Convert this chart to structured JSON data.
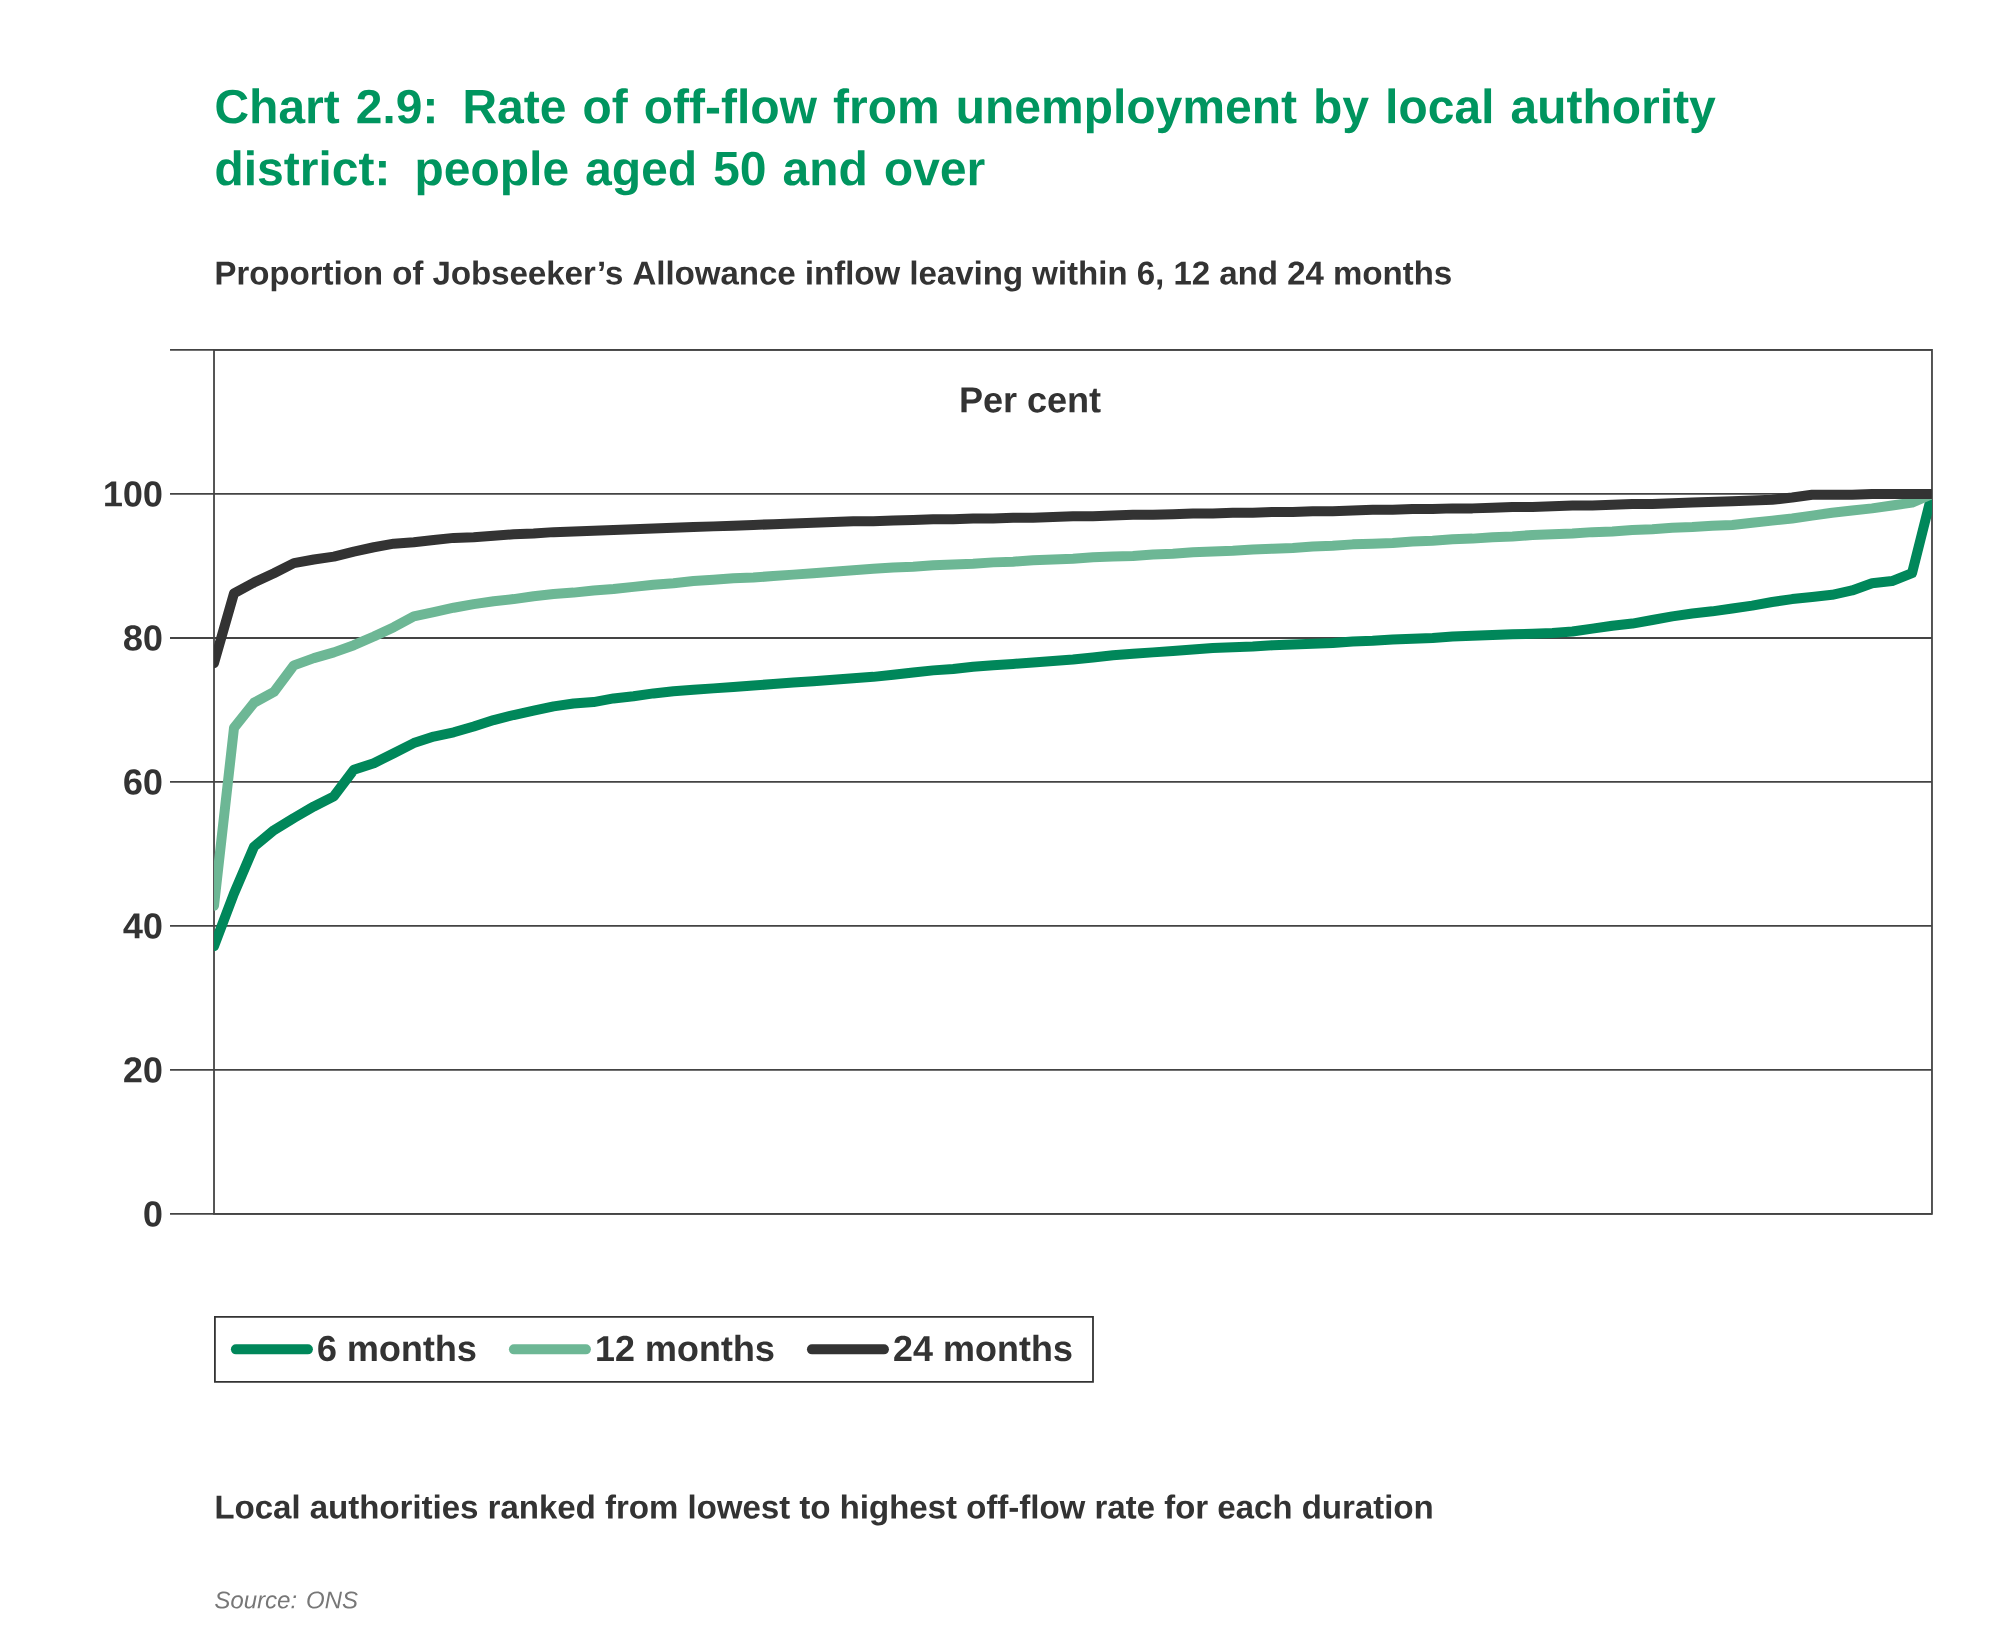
{
  "chart_data": {
    "type": "line",
    "title": "Chart 2.9: Rate of off-flow from unemployment by local authority district: people aged 50 and over",
    "subtitle": "Proportion of Jobseeker’s Allowance inflow leaving within 6, 12 and 24 months",
    "ylabel": "Per cent",
    "annotations": [
      "Local authorities ranked from lowest to highest off-flow rate for each duration",
      "Source: ONS"
    ],
    "categories": [
      null,
      null,
      null,
      null,
      null,
      null,
      null,
      null,
      null,
      null,
      null,
      null,
      null,
      null,
      null,
      null,
      null,
      null,
      null,
      null,
      null,
      null,
      null,
      null,
      null,
      null,
      null,
      null,
      null,
      null,
      null,
      null,
      null,
      null,
      null,
      null,
      null,
      null,
      null,
      null,
      null,
      null,
      null,
      null,
      null,
      null,
      null,
      null,
      null,
      null,
      null,
      null,
      null,
      null,
      null,
      null,
      null,
      null,
      null,
      null,
      null,
      null,
      null,
      null,
      null,
      null,
      null,
      null,
      null,
      null,
      null,
      null,
      null,
      null,
      null,
      null,
      null,
      null,
      null,
      null,
      null,
      null,
      null,
      null,
      null,
      null,
      null
    ],
    "series": [
      {
        "name": "6 months",
        "color": "#00875a",
        "values": [
          37.2,
          44.5,
          51,
          53.3,
          55,
          56.6,
          58,
          61.7,
          62.6,
          64,
          65.4,
          66.3,
          66.9,
          67.7,
          68.6,
          69.3,
          69.9,
          70.5,
          70.9,
          71.1,
          71.6,
          71.9,
          72.3,
          72.6,
          72.8,
          73,
          73.2,
          73.4,
          73.6,
          73.8,
          74,
          74.2,
          74.4,
          74.6,
          74.9,
          75.2,
          75.5,
          75.7,
          76,
          76.2,
          76.4,
          76.6,
          76.8,
          77,
          77.3,
          77.6,
          77.8,
          78,
          78.2,
          78.4,
          78.6,
          78.7,
          78.8,
          79,
          79.1,
          79.2,
          79.3,
          79.5,
          79.6,
          79.8,
          79.9,
          80,
          80.2,
          80.3,
          80.4,
          80.5,
          80.6,
          80.7,
          80.9,
          81.3,
          81.7,
          82,
          82.5,
          83,
          83.4,
          83.7,
          84.1,
          84.5,
          85,
          85.4,
          85.7,
          86,
          86.6,
          87.6,
          87.9,
          89,
          100
        ]
      },
      {
        "name": "12 months",
        "color": "#6db795",
        "values": [
          42.8,
          67.5,
          71,
          72.5,
          76.2,
          77.2,
          78,
          79,
          80.2,
          81.5,
          83,
          83.6,
          84.2,
          84.7,
          85.1,
          85.4,
          85.8,
          86.1,
          86.3,
          86.6,
          86.8,
          87.1,
          87.4,
          87.6,
          87.9,
          88.1,
          88.3,
          88.4,
          88.6,
          88.8,
          89,
          89.2,
          89.4,
          89.6,
          89.8,
          89.9,
          90.1,
          90.2,
          90.3,
          90.5,
          90.6,
          90.8,
          90.9,
          91,
          91.2,
          91.3,
          91.4,
          91.6,
          91.7,
          91.9,
          92,
          92.1,
          92.3,
          92.4,
          92.5,
          92.7,
          92.8,
          93,
          93.1,
          93.2,
          93.4,
          93.5,
          93.7,
          93.8,
          94,
          94.1,
          94.3,
          94.4,
          94.5,
          94.7,
          94.8,
          95,
          95.1,
          95.3,
          95.4,
          95.6,
          95.7,
          96,
          96.3,
          96.6,
          97,
          97.4,
          97.7,
          98,
          98.4,
          98.8,
          100
        ]
      },
      {
        "name": "24 months",
        "color": "#333333",
        "values": [
          76.5,
          86.2,
          87.7,
          89,
          90.4,
          90.9,
          91.3,
          92,
          92.6,
          93.1,
          93.3,
          93.6,
          93.9,
          94,
          94.2,
          94.4,
          94.5,
          94.7,
          94.8,
          94.9,
          95,
          95.1,
          95.2,
          95.3,
          95.4,
          95.5,
          95.6,
          95.7,
          95.8,
          95.9,
          96,
          96.1,
          96.2,
          96.2,
          96.3,
          96.4,
          96.5,
          96.5,
          96.6,
          96.6,
          96.7,
          96.7,
          96.8,
          96.9,
          96.9,
          97,
          97.1,
          97.1,
          97.2,
          97.3,
          97.3,
          97.4,
          97.4,
          97.5,
          97.5,
          97.6,
          97.6,
          97.7,
          97.8,
          97.8,
          97.9,
          97.9,
          98,
          98,
          98.1,
          98.2,
          98.2,
          98.3,
          98.4,
          98.4,
          98.5,
          98.6,
          98.6,
          98.7,
          98.8,
          98.9,
          99,
          99.1,
          99.2,
          99.5,
          99.9,
          99.9,
          99.9,
          100,
          100,
          100,
          100
        ]
      }
    ],
    "ylim": [
      0,
      120
    ],
    "yticks": [
      0,
      20,
      40,
      60,
      80,
      100,
      {
        "value": 120,
        "label": null
      }
    ],
    "grid": "y",
    "legend": "bottom",
    "marker": "none",
    "line_style": "solid"
  }
}
